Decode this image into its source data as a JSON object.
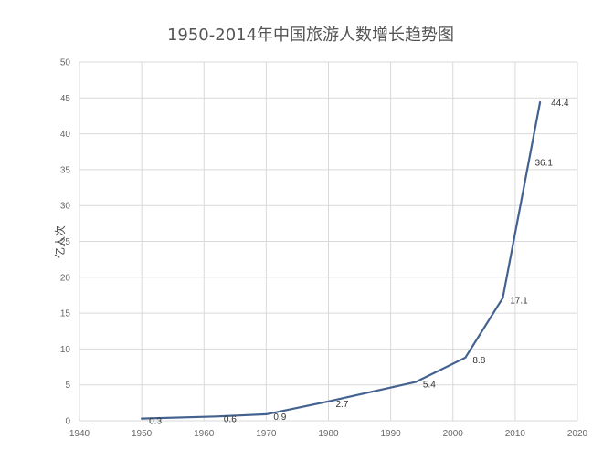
{
  "chart_data": {
    "type": "line",
    "title": "1950-2014年中国旅游人数增长趋势图",
    "xlabel": "",
    "ylabel": "亿人次",
    "xlim": [
      1940,
      2020
    ],
    "ylim": [
      0,
      50
    ],
    "x_ticks": [
      "1940",
      "1950",
      "1960",
      "1970",
      "1980",
      "1990",
      "2000",
      "2010",
      "2020"
    ],
    "y_ticks": [
      "0",
      "5",
      "10",
      "15",
      "20",
      "25",
      "30",
      "35",
      "40",
      "45",
      "50"
    ],
    "grid": true,
    "legend": "none",
    "series": [
      {
        "x": [
          1950,
          1962,
          1970,
          1980,
          1994,
          2002,
          2008,
          2014
        ],
        "y": [
          0.3,
          0.6,
          0.9,
          2.7,
          5.4,
          8.8,
          17.1,
          44.4
        ],
        "labels": [
          "0.3",
          "0.6",
          "0.9",
          "2.7",
          "5.4",
          "8.8",
          "17.1",
          "44.4"
        ],
        "color": "#44628f"
      }
    ],
    "extra_labels": [
      {
        "x": 2012,
        "y": 36.1,
        "text": "36.1"
      }
    ]
  }
}
